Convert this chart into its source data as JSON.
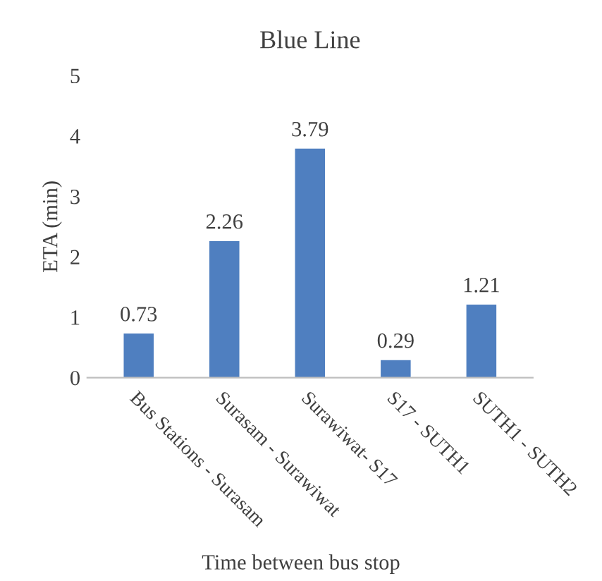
{
  "chart_data": {
    "type": "bar",
    "title": "Blue Line",
    "xlabel": "Time between bus stop",
    "ylabel": "ETA (min)",
    "categories": [
      "Bus Stations - Surasam",
      "Surasam - Surawiwat",
      "Surawiwat- S17",
      "S17 - SUTH1",
      "SUTH1 - SUTH2"
    ],
    "values": [
      0.73,
      2.26,
      3.79,
      0.29,
      1.21
    ],
    "color": "#4f7fc0",
    "ylim": [
      0,
      5
    ],
    "yticks": [
      0,
      1,
      2,
      3,
      4,
      5
    ],
    "grid": false,
    "data_labels": true
  }
}
